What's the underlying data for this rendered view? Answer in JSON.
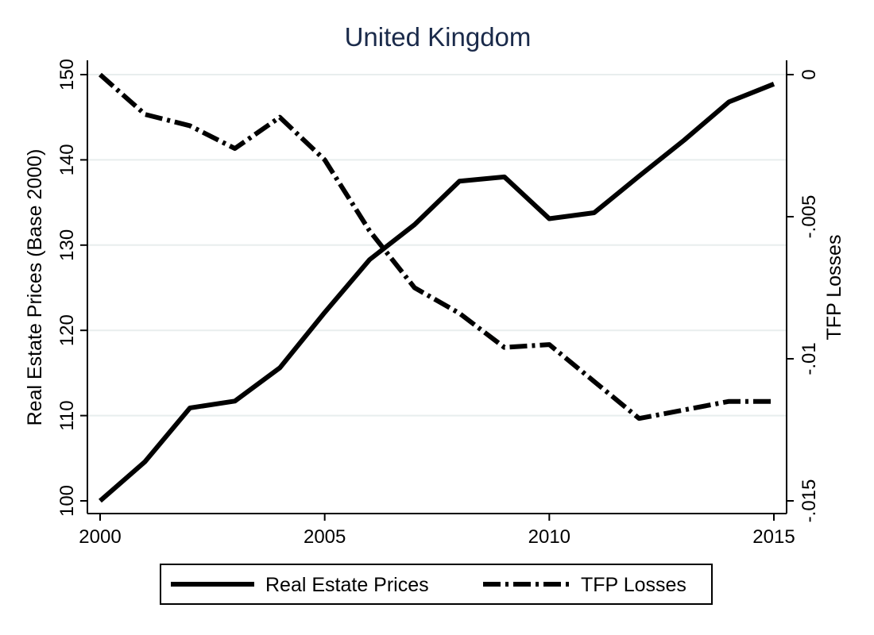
{
  "chart_data": {
    "type": "line",
    "title": "United Kingdom",
    "x": [
      2000,
      2001,
      2002,
      2003,
      2004,
      2005,
      2006,
      2007,
      2008,
      2009,
      2010,
      2011,
      2012,
      2013,
      2014,
      2015
    ],
    "xticks": [
      "2000",
      "2005",
      "2010",
      "2015"
    ],
    "xlim": [
      2000,
      2015
    ],
    "ylabel_left": "Real Estate Prices (Base 2000)",
    "ylabel_right": "TFP Losses",
    "ylim_left": [
      100,
      150
    ],
    "yticks_left": [
      "100",
      "110",
      "120",
      "130",
      "140",
      "150"
    ],
    "ylim_right": [
      -0.015,
      0
    ],
    "yticks_right": [
      "-.015",
      "-.01",
      "-.005",
      "0"
    ],
    "grid": true,
    "legend_position": "bottom",
    "series": [
      {
        "name": "Real Estate Prices",
        "axis": "left",
        "style": "solid",
        "values": [
          100,
          104.6,
          110.9,
          111.7,
          115.6,
          122.1,
          128.3,
          132.4,
          137.5,
          138.0,
          133.1,
          133.8,
          138.1,
          142.3,
          146.8,
          148.9
        ]
      },
      {
        "name": "TFP Losses",
        "axis": "right",
        "style": "dash-dot",
        "values": [
          0,
          -0.0014,
          -0.0018,
          -0.0026,
          -0.0015,
          -0.003,
          -0.0055,
          -0.0075,
          -0.0084,
          -0.0096,
          -0.0095,
          -0.0108,
          -0.0121,
          -0.0118,
          -0.0115,
          -0.0115
        ]
      }
    ],
    "colors": {
      "title": "#1a2a4a",
      "lines": "#000000",
      "grid": "#e8eeee"
    }
  }
}
